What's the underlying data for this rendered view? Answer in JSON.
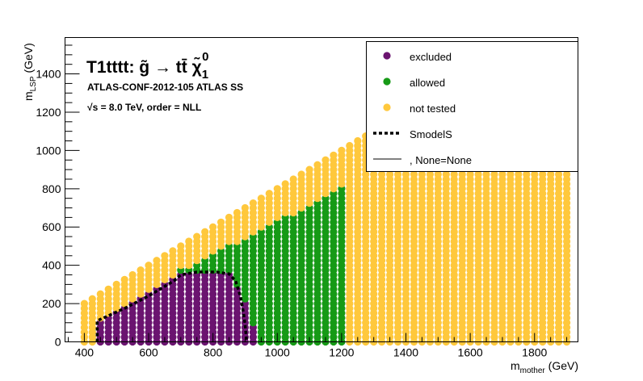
{
  "chart_data": {
    "type": "scatter",
    "title": "T1tttt:  g̃  → tt̄  χ̃",
    "title_sub": "1",
    "title_sup": "0",
    "analysis": "ATLAS-CONF-2012-105  ATLAS SS",
    "energy_line": "√s =  8.0 TeV, order =  NLL",
    "xlabel_main": "m",
    "xlabel_sub": "mother",
    "xlabel_unit": " (GeV)",
    "ylabel_main": "m",
    "ylabel_sub": "LSP",
    "ylabel_unit": " (GeV)",
    "xlim": [
      340,
      1935
    ],
    "ylim": [
      0,
      1590
    ],
    "xticks": [
      400,
      600,
      800,
      1000,
      1200,
      1400,
      1600,
      1800
    ],
    "yticks": [
      0,
      200,
      400,
      600,
      800,
      1000,
      1200,
      1400
    ],
    "grid": false,
    "legend_position": "top-right",
    "colors": {
      "excluded": "#6b1470",
      "allowed": "#169a16",
      "not_tested": "#ffc83c",
      "smodels": "#000000",
      "none": "#000000"
    },
    "legend": [
      {
        "label": "excluded",
        "kind": "marker",
        "color": "#6b1470"
      },
      {
        "label": "allowed",
        "kind": "marker",
        "color": "#169a16"
      },
      {
        "label": "not tested",
        "kind": "marker",
        "color": "#ffc83c"
      },
      {
        "label": "SmodelS",
        "kind": "dashed-line",
        "color": "#000000"
      },
      {
        "label": ", None=None",
        "kind": "line",
        "color": "#000000"
      }
    ],
    "grid_spacing": {
      "x": 25,
      "y": 25
    },
    "region": {
      "x_range": [
        400,
        1900
      ],
      "y_max_vs_x": [
        [
          400,
          200
        ],
        [
          1300,
          1100
        ]
      ],
      "y_max_cap": 1100
    },
    "allowed_region": {
      "x_range": [
        700,
        1200
      ],
      "y_max_vs_x": [
        [
          700,
          375
        ],
        [
          1200,
          800
        ]
      ]
    },
    "excluded_region": {
      "x_range": [
        450,
        900
      ],
      "y_max_vs_x": [
        [
          450,
          100
        ],
        [
          700,
          360
        ],
        [
          850,
          360
        ],
        [
          900,
          200
        ]
      ],
      "tail": {
        "x": 925,
        "y_max": 75
      }
    },
    "smodels_contour": [
      [
        440,
        0
      ],
      [
        440,
        110
      ],
      [
        525,
        175
      ],
      [
        600,
        240
      ],
      [
        680,
        320
      ],
      [
        700,
        350
      ],
      [
        750,
        365
      ],
      [
        810,
        365
      ],
      [
        850,
        355
      ],
      [
        870,
        320
      ],
      [
        885,
        240
      ],
      [
        895,
        150
      ],
      [
        900,
        90
      ],
      [
        905,
        0
      ]
    ]
  }
}
